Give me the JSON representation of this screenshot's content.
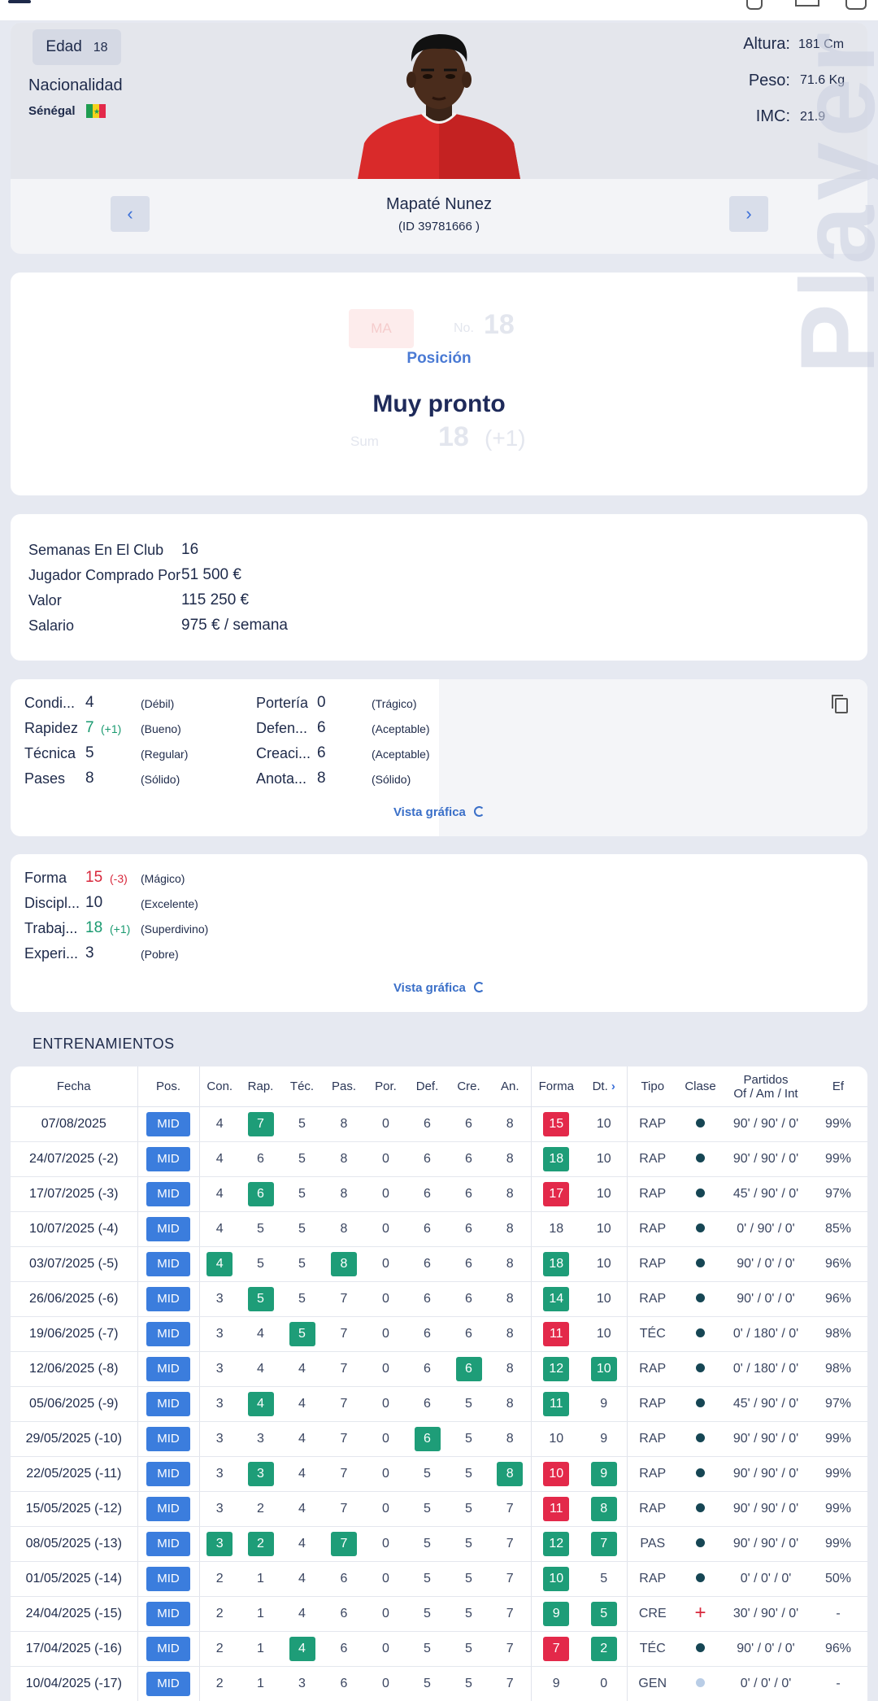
{
  "player": {
    "age_label": "Edad",
    "age": "18",
    "nationality_label": "Nacionalidad",
    "nationality": "Sénégal",
    "flag_colors": [
      "#1e9d50",
      "#f5d21c",
      "#e3294a"
    ],
    "height_label": "Altura:",
    "height": "181 Cm",
    "weight_label": "Peso:",
    "weight": "71.6 Kg",
    "bmi_label": "IMC:",
    "bmi": "21.9",
    "name": "Mapaté Nunez",
    "id": "(ID 39781666 )",
    "prev_label": "‹",
    "next_label": "›",
    "watermark": "Player"
  },
  "position": {
    "ghost_pos": "MA",
    "ghost_no_label": "No.",
    "ghost_no": "18",
    "ghost_sum_label": "Sum",
    "ghost_sum": "18",
    "ghost_sum_delta": "(+1)",
    "label": "Posición",
    "value": "Muy pronto"
  },
  "club": [
    {
      "label": "Semanas En El Club",
      "value": "16"
    },
    {
      "label": "Jugador Comprado Por",
      "value": "51 500 €"
    },
    {
      "label": "Valor",
      "value": "115 250 €"
    },
    {
      "label": "Salario",
      "value": "975 € / semana"
    }
  ],
  "skills_left": [
    {
      "name": "Condi...",
      "value": "4",
      "delta": "",
      "quality": "(Débil)"
    },
    {
      "name": "Rapidez",
      "value": "7",
      "delta": "(+1)",
      "quality": "(Bueno)"
    },
    {
      "name": "Técnica",
      "value": "5",
      "delta": "",
      "quality": "(Regular)"
    },
    {
      "name": "Pases",
      "value": "8",
      "delta": "",
      "quality": "(Sólido)"
    }
  ],
  "skills_right": [
    {
      "name": "Portería",
      "value": "0",
      "quality": "(Trágico)"
    },
    {
      "name": "Defen...",
      "value": "6",
      "quality": "(Aceptable)"
    },
    {
      "name": "Creaci...",
      "value": "6",
      "quality": "(Aceptable)"
    },
    {
      "name": "Anota...",
      "value": "8",
      "quality": "(Sólido)"
    }
  ],
  "mental": [
    {
      "name": "Forma",
      "value": "15",
      "delta": "(-3)",
      "quality": "(Mágico)"
    },
    {
      "name": "Discipl...",
      "value": "10",
      "delta": "",
      "quality": "(Excelente)"
    },
    {
      "name": "Trabaj...",
      "value": "18",
      "delta": "(+1)",
      "quality": "(Superdivino)"
    },
    {
      "name": "Experi...",
      "value": "3",
      "delta": "",
      "quality": "(Pobre)"
    }
  ],
  "graph_link": "Vista gráfica",
  "training": {
    "title": "ENTRENAMIENTOS",
    "headers": [
      "Fecha",
      "Pos.",
      "Con.",
      "Rap.",
      "Téc.",
      "Pas.",
      "Por.",
      "Def.",
      "Cre.",
      "An.",
      "Forma",
      "Dt.",
      "Tipo",
      "Clase",
      "Partidos",
      "Ef"
    ],
    "partidos_sub": "Of / Am / Int",
    "rows": [
      {
        "fecha": "07/08/2025",
        "pos": "MID",
        "con": "4",
        "rap": "7",
        "tec": "5",
        "pas": "8",
        "por": "0",
        "def": "6",
        "cre": "6",
        "an": "8",
        "forma": "15",
        "dt": "10",
        "tipo": "RAP",
        "clase": "dot",
        "partidos": "90' / 90' / 0'",
        "ef": "99%",
        "hl": {
          "rap": "g",
          "forma": "r"
        }
      },
      {
        "fecha": "24/07/2025 (-2)",
        "pos": "MID",
        "con": "4",
        "rap": "6",
        "tec": "5",
        "pas": "8",
        "por": "0",
        "def": "6",
        "cre": "6",
        "an": "8",
        "forma": "18",
        "dt": "10",
        "tipo": "RAP",
        "clase": "dot",
        "partidos": "90' / 90' / 0'",
        "ef": "99%",
        "hl": {
          "forma": "g"
        }
      },
      {
        "fecha": "17/07/2025 (-3)",
        "pos": "MID",
        "con": "4",
        "rap": "6",
        "tec": "5",
        "pas": "8",
        "por": "0",
        "def": "6",
        "cre": "6",
        "an": "8",
        "forma": "17",
        "dt": "10",
        "tipo": "RAP",
        "clase": "dot",
        "partidos": "45' / 90' / 0'",
        "ef": "97%",
        "hl": {
          "rap": "g",
          "forma": "r"
        }
      },
      {
        "fecha": "10/07/2025 (-4)",
        "pos": "MID",
        "con": "4",
        "rap": "5",
        "tec": "5",
        "pas": "8",
        "por": "0",
        "def": "6",
        "cre": "6",
        "an": "8",
        "forma": "18",
        "dt": "10",
        "tipo": "RAP",
        "clase": "dot",
        "partidos": "0' / 90' / 0'",
        "ef": "85%",
        "hl": {}
      },
      {
        "fecha": "03/07/2025 (-5)",
        "pos": "MID",
        "con": "4",
        "rap": "5",
        "tec": "5",
        "pas": "8",
        "por": "0",
        "def": "6",
        "cre": "6",
        "an": "8",
        "forma": "18",
        "dt": "10",
        "tipo": "RAP",
        "clase": "dot",
        "partidos": "90' / 0' / 0'",
        "ef": "96%",
        "hl": {
          "con": "g",
          "pas": "g",
          "forma": "g"
        }
      },
      {
        "fecha": "26/06/2025 (-6)",
        "pos": "MID",
        "con": "3",
        "rap": "5",
        "tec": "5",
        "pas": "7",
        "por": "0",
        "def": "6",
        "cre": "6",
        "an": "8",
        "forma": "14",
        "dt": "10",
        "tipo": "RAP",
        "clase": "dot",
        "partidos": "90' / 0' / 0'",
        "ef": "96%",
        "hl": {
          "rap": "g",
          "forma": "g"
        }
      },
      {
        "fecha": "19/06/2025 (-7)",
        "pos": "MID",
        "con": "3",
        "rap": "4",
        "tec": "5",
        "pas": "7",
        "por": "0",
        "def": "6",
        "cre": "6",
        "an": "8",
        "forma": "11",
        "dt": "10",
        "tipo": "TÉC",
        "clase": "dot",
        "partidos": "0' / 180' / 0'",
        "ef": "98%",
        "hl": {
          "tec": "g",
          "forma": "r"
        }
      },
      {
        "fecha": "12/06/2025 (-8)",
        "pos": "MID",
        "con": "3",
        "rap": "4",
        "tec": "4",
        "pas": "7",
        "por": "0",
        "def": "6",
        "cre": "6",
        "an": "8",
        "forma": "12",
        "dt": "10",
        "tipo": "RAP",
        "clase": "dot",
        "partidos": "0' / 180' / 0'",
        "ef": "98%",
        "hl": {
          "cre": "g",
          "forma": "g",
          "dt": "g"
        }
      },
      {
        "fecha": "05/06/2025 (-9)",
        "pos": "MID",
        "con": "3",
        "rap": "4",
        "tec": "4",
        "pas": "7",
        "por": "0",
        "def": "6",
        "cre": "5",
        "an": "8",
        "forma": "11",
        "dt": "9",
        "tipo": "RAP",
        "clase": "dot",
        "partidos": "45' / 90' / 0'",
        "ef": "97%",
        "hl": {
          "rap": "g",
          "forma": "g"
        }
      },
      {
        "fecha": "29/05/2025 (-10)",
        "pos": "MID",
        "con": "3",
        "rap": "3",
        "tec": "4",
        "pas": "7",
        "por": "0",
        "def": "6",
        "cre": "5",
        "an": "8",
        "forma": "10",
        "dt": "9",
        "tipo": "RAP",
        "clase": "dot",
        "partidos": "90' / 90' / 0'",
        "ef": "99%",
        "hl": {
          "def": "g"
        }
      },
      {
        "fecha": "22/05/2025 (-11)",
        "pos": "MID",
        "con": "3",
        "rap": "3",
        "tec": "4",
        "pas": "7",
        "por": "0",
        "def": "5",
        "cre": "5",
        "an": "8",
        "forma": "10",
        "dt": "9",
        "tipo": "RAP",
        "clase": "dot",
        "partidos": "90' / 90' / 0'",
        "ef": "99%",
        "hl": {
          "rap": "g",
          "an": "g",
          "forma": "r",
          "dt": "g"
        }
      },
      {
        "fecha": "15/05/2025 (-12)",
        "pos": "MID",
        "con": "3",
        "rap": "2",
        "tec": "4",
        "pas": "7",
        "por": "0",
        "def": "5",
        "cre": "5",
        "an": "7",
        "forma": "11",
        "dt": "8",
        "tipo": "RAP",
        "clase": "dot",
        "partidos": "90' / 90' / 0'",
        "ef": "99%",
        "hl": {
          "forma": "r",
          "dt": "g"
        }
      },
      {
        "fecha": "08/05/2025 (-13)",
        "pos": "MID",
        "con": "3",
        "rap": "2",
        "tec": "4",
        "pas": "7",
        "por": "0",
        "def": "5",
        "cre": "5",
        "an": "7",
        "forma": "12",
        "dt": "7",
        "tipo": "PAS",
        "clase": "dot",
        "partidos": "90' / 90' / 0'",
        "ef": "99%",
        "hl": {
          "con": "g",
          "rap": "g",
          "pas": "g",
          "forma": "g",
          "dt": "g"
        }
      },
      {
        "fecha": "01/05/2025 (-14)",
        "pos": "MID",
        "con": "2",
        "rap": "1",
        "tec": "4",
        "pas": "6",
        "por": "0",
        "def": "5",
        "cre": "5",
        "an": "7",
        "forma": "10",
        "dt": "5",
        "tipo": "RAP",
        "clase": "dot",
        "partidos": "0' / 0' / 0'",
        "ef": "50%",
        "hl": {
          "forma": "g"
        }
      },
      {
        "fecha": "24/04/2025 (-15)",
        "pos": "MID",
        "con": "2",
        "rap": "1",
        "tec": "4",
        "pas": "6",
        "por": "0",
        "def": "5",
        "cre": "5",
        "an": "7",
        "forma": "9",
        "dt": "5",
        "tipo": "CRE",
        "clase": "plus",
        "partidos": "30' / 90' / 0'",
        "ef": "-",
        "hl": {
          "forma": "g",
          "dt": "g"
        }
      },
      {
        "fecha": "17/04/2025 (-16)",
        "pos": "MID",
        "con": "2",
        "rap": "1",
        "tec": "4",
        "pas": "6",
        "por": "0",
        "def": "5",
        "cre": "5",
        "an": "7",
        "forma": "7",
        "dt": "2",
        "tipo": "TÉC",
        "clase": "dot",
        "partidos": "90' / 0' / 0'",
        "ef": "96%",
        "hl": {
          "tec": "g",
          "forma": "r",
          "dt": "g"
        }
      },
      {
        "fecha": "10/04/2025 (-17)",
        "pos": "MID",
        "con": "2",
        "rap": "1",
        "tec": "3",
        "pas": "6",
        "por": "0",
        "def": "5",
        "cre": "5",
        "an": "7",
        "forma": "9",
        "dt": "0",
        "tipo": "GEN",
        "clase": "dot-light",
        "partidos": "0' / 0' / 0'",
        "ef": "-",
        "hl": {}
      }
    ]
  }
}
